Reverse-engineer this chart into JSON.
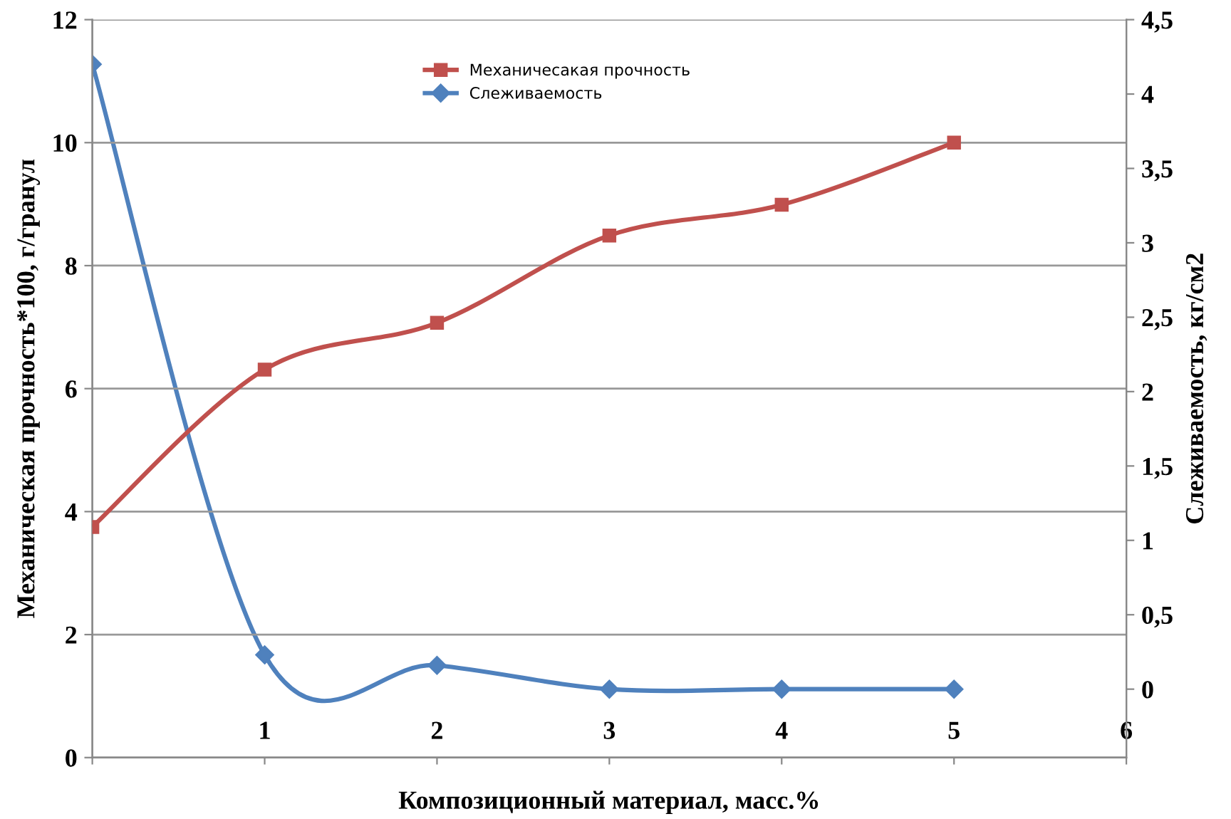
{
  "chart_data": {
    "type": "line",
    "xlabel": "Композиционный материал, масс.%",
    "ylabel": "Механическая прочность*100, г/гранул",
    "y2label": "Слеживаемость, кг/см2",
    "x": [
      0,
      1,
      2,
      3,
      4,
      5
    ],
    "series": [
      {
        "name": "Механичесакая прочность",
        "color": "#c0504d",
        "marker": "square",
        "values": [
          3.75,
          6.31,
          7.07,
          8.49,
          8.99,
          10.0
        ]
      },
      {
        "name": "Слеживаемость",
        "color": "#4f81bd",
        "marker": "diamond",
        "axis": "y2",
        "values": [
          4.2,
          0.23,
          0.16,
          0.0,
          0.0,
          0.0
        ]
      }
    ],
    "xlim": [
      0,
      6
    ],
    "xticks": [
      {
        "value": 0,
        "label": null
      },
      1,
      2,
      3,
      4,
      5,
      6
    ],
    "ylim": [
      0,
      12
    ],
    "yticks": [
      0,
      2,
      4,
      6,
      8,
      10,
      12
    ],
    "y2lim": [
      -0.46,
      4.5
    ],
    "y2ticks": [
      0,
      {
        "value": 0.5,
        "label": "0,5"
      },
      1,
      {
        "value": 1.5,
        "label": "1,5"
      },
      2,
      {
        "value": 2.5,
        "label": "2,5"
      },
      3,
      {
        "value": 3.5,
        "label": "3,5"
      },
      4,
      {
        "value": 4.5,
        "label": "4,5"
      }
    ],
    "grid": "y",
    "legend": "top",
    "line_style": "solid"
  }
}
